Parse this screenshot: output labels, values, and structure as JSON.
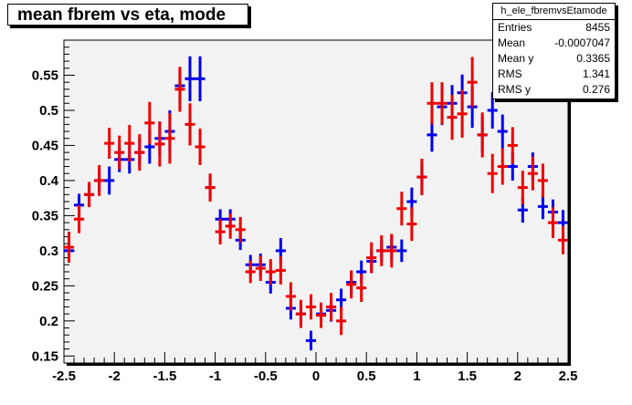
{
  "title": "mean fbrem vs eta, mode",
  "stats": {
    "name": "h_ele_fbremvsEtamode",
    "rows": [
      {
        "label": "Entries",
        "value": "8455"
      },
      {
        "label": "Mean",
        "value": "-0.0007047"
      },
      {
        "label": "Mean y",
        "value": "0.3365"
      },
      {
        "label": "RMS",
        "value": "1.341"
      },
      {
        "label": "RMS y",
        "value": "0.276"
      }
    ]
  },
  "colors": {
    "frame_bg": "#f2f2f2",
    "series1": "#0000ee",
    "series2": "#ee0000"
  },
  "chart_data": {
    "type": "scatter",
    "xlim": [
      -2.5,
      2.5
    ],
    "ylim": [
      0.14,
      0.6
    ],
    "x_ticks": [
      -2.5,
      -2,
      -1.5,
      -1,
      -0.5,
      0,
      0.5,
      1,
      1.5,
      2,
      2.5
    ],
    "x_tick_labels": [
      "-2.5",
      "-2",
      "-1.5",
      "-1",
      "-0.5",
      "0",
      "0.5",
      "1",
      "1.5",
      "2",
      "2.5"
    ],
    "y_ticks": [
      0.15,
      0.2,
      0.25,
      0.3,
      0.35,
      0.4,
      0.45,
      0.5,
      0.55
    ],
    "y_tick_labels": [
      "0.15",
      "0.2",
      "0.25",
      "0.3",
      "0.35",
      "0.4",
      "0.45",
      "0.5",
      "0.55"
    ],
    "x_half_width": 0.05,
    "series": [
      {
        "color": "#0000ee",
        "points": [
          [
            -2.45,
            0.3,
            0.016
          ],
          [
            -2.35,
            0.365,
            0.016
          ],
          [
            -2.25,
            0.38,
            0.016
          ],
          [
            -2.15,
            0.4,
            0.016
          ],
          [
            -2.05,
            0.4,
            0.02
          ],
          [
            -1.95,
            0.43,
            0.018
          ],
          [
            -1.85,
            0.43,
            0.02
          ],
          [
            -1.75,
            0.44,
            0.02
          ],
          [
            -1.65,
            0.448,
            0.024
          ],
          [
            -1.55,
            0.46,
            0.024
          ],
          [
            -1.45,
            0.47,
            0.03
          ],
          [
            -1.35,
            0.535,
            0.026
          ],
          [
            -1.25,
            0.545,
            0.032
          ],
          [
            -1.15,
            0.545,
            0.032
          ],
          [
            -1.05,
            0.39,
            0.015
          ],
          [
            -0.95,
            0.345,
            0.014
          ],
          [
            -0.85,
            0.345,
            0.014
          ],
          [
            -0.75,
            0.315,
            0.014
          ],
          [
            -0.65,
            0.28,
            0.014
          ],
          [
            -0.55,
            0.28,
            0.016
          ],
          [
            -0.45,
            0.255,
            0.016
          ],
          [
            -0.35,
            0.3,
            0.018
          ],
          [
            -0.25,
            0.218,
            0.016
          ],
          [
            -0.15,
            0.21,
            0.016
          ],
          [
            -0.05,
            0.172,
            0.014
          ],
          [
            0.05,
            0.21,
            0.016
          ],
          [
            0.15,
            0.215,
            0.016
          ],
          [
            0.25,
            0.23,
            0.016
          ],
          [
            0.35,
            0.255,
            0.016
          ],
          [
            0.45,
            0.27,
            0.016
          ],
          [
            0.55,
            0.285,
            0.016
          ],
          [
            0.65,
            0.3,
            0.016
          ],
          [
            0.75,
            0.305,
            0.016
          ],
          [
            0.85,
            0.3,
            0.016
          ],
          [
            0.95,
            0.37,
            0.02
          ],
          [
            1.05,
            0.405,
            0.02
          ],
          [
            1.15,
            0.465,
            0.024
          ],
          [
            1.25,
            0.505,
            0.026
          ],
          [
            1.35,
            0.51,
            0.026
          ],
          [
            1.45,
            0.525,
            0.026
          ],
          [
            1.55,
            0.505,
            0.03
          ],
          [
            1.65,
            0.465,
            0.026
          ],
          [
            1.75,
            0.5,
            0.026
          ],
          [
            1.85,
            0.47,
            0.024
          ],
          [
            1.95,
            0.42,
            0.02
          ],
          [
            2.05,
            0.358,
            0.018
          ],
          [
            2.15,
            0.42,
            0.02
          ],
          [
            2.25,
            0.363,
            0.018
          ],
          [
            2.35,
            0.355,
            0.018
          ],
          [
            2.45,
            0.34,
            0.018
          ]
        ]
      },
      {
        "color": "#ee0000",
        "points": [
          [
            -2.45,
            0.305,
            0.022
          ],
          [
            -2.35,
            0.345,
            0.02
          ],
          [
            -2.25,
            0.38,
            0.018
          ],
          [
            -2.15,
            0.4,
            0.022
          ],
          [
            -2.05,
            0.453,
            0.022
          ],
          [
            -1.95,
            0.44,
            0.024
          ],
          [
            -1.85,
            0.453,
            0.026
          ],
          [
            -1.75,
            0.44,
            0.026
          ],
          [
            -1.65,
            0.482,
            0.03
          ],
          [
            -1.55,
            0.452,
            0.032
          ],
          [
            -1.45,
            0.46,
            0.036
          ],
          [
            -1.35,
            0.53,
            0.032
          ],
          [
            -1.25,
            0.48,
            0.03
          ],
          [
            -1.15,
            0.448,
            0.026
          ],
          [
            -1.05,
            0.39,
            0.02
          ],
          [
            -0.95,
            0.327,
            0.018
          ],
          [
            -0.85,
            0.335,
            0.018
          ],
          [
            -0.75,
            0.33,
            0.018
          ],
          [
            -0.65,
            0.27,
            0.016
          ],
          [
            -0.55,
            0.275,
            0.018
          ],
          [
            -0.45,
            0.27,
            0.018
          ],
          [
            -0.35,
            0.272,
            0.02
          ],
          [
            -0.25,
            0.235,
            0.02
          ],
          [
            -0.15,
            0.21,
            0.02
          ],
          [
            -0.05,
            0.22,
            0.018
          ],
          [
            0.05,
            0.208,
            0.018
          ],
          [
            0.15,
            0.22,
            0.02
          ],
          [
            0.25,
            0.2,
            0.02
          ],
          [
            0.35,
            0.252,
            0.02
          ],
          [
            0.45,
            0.247,
            0.02
          ],
          [
            0.55,
            0.29,
            0.022
          ],
          [
            0.65,
            0.3,
            0.022
          ],
          [
            0.75,
            0.3,
            0.024
          ],
          [
            0.85,
            0.36,
            0.024
          ],
          [
            0.95,
            0.338,
            0.024
          ],
          [
            1.05,
            0.405,
            0.026
          ],
          [
            1.15,
            0.51,
            0.03
          ],
          [
            1.25,
            0.51,
            0.03
          ],
          [
            1.35,
            0.49,
            0.032
          ],
          [
            1.45,
            0.495,
            0.034
          ],
          [
            1.55,
            0.54,
            0.036
          ],
          [
            1.65,
            0.465,
            0.032
          ],
          [
            1.75,
            0.41,
            0.028
          ],
          [
            1.85,
            0.42,
            0.026
          ],
          [
            1.95,
            0.45,
            0.026
          ],
          [
            2.05,
            0.39,
            0.024
          ],
          [
            2.15,
            0.41,
            0.024
          ],
          [
            2.25,
            0.4,
            0.024
          ],
          [
            2.35,
            0.34,
            0.022
          ],
          [
            2.45,
            0.315,
            0.02
          ]
        ]
      }
    ]
  }
}
